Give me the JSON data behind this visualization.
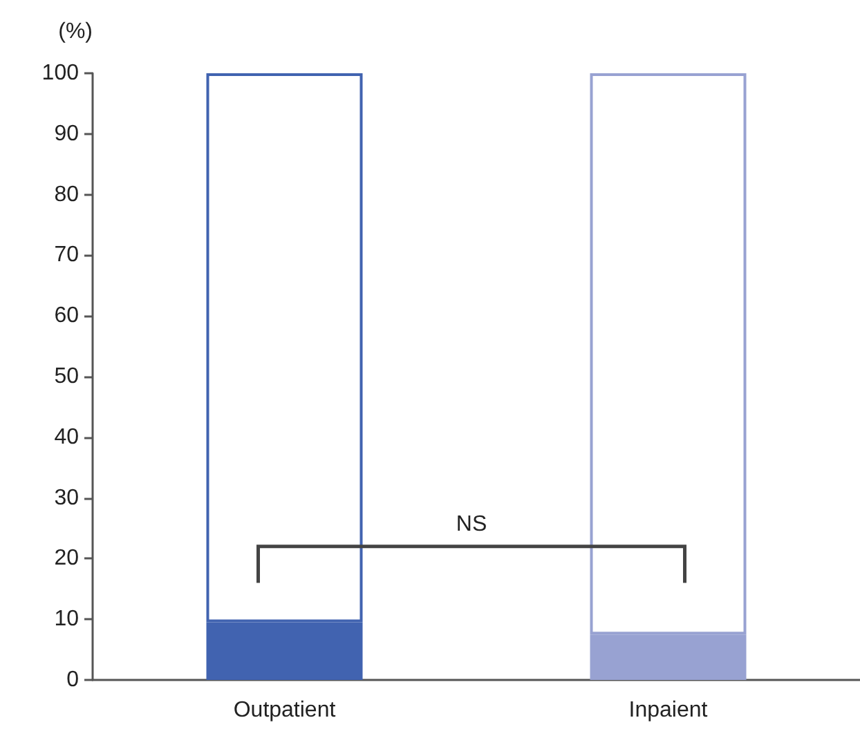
{
  "chart_data": {
    "type": "bar",
    "ylabel": "(%)",
    "categories": [
      "Outpatient",
      "Inpaient"
    ],
    "stacked": true,
    "series": [
      {
        "colors": [
          "#4163b0",
          "#98a2d2"
        ],
        "values": [
          9.5,
          7.5
        ]
      },
      {
        "colors": [
          "#4163b0",
          "#98a2d2"
        ],
        "values": [
          90.5,
          92.5
        ]
      }
    ],
    "ylim": [
      0,
      100
    ],
    "yticks": [
      0,
      10,
      20,
      30,
      40,
      50,
      60,
      70,
      80,
      90,
      100
    ],
    "grid": false,
    "annotations": [
      "NS"
    ]
  }
}
